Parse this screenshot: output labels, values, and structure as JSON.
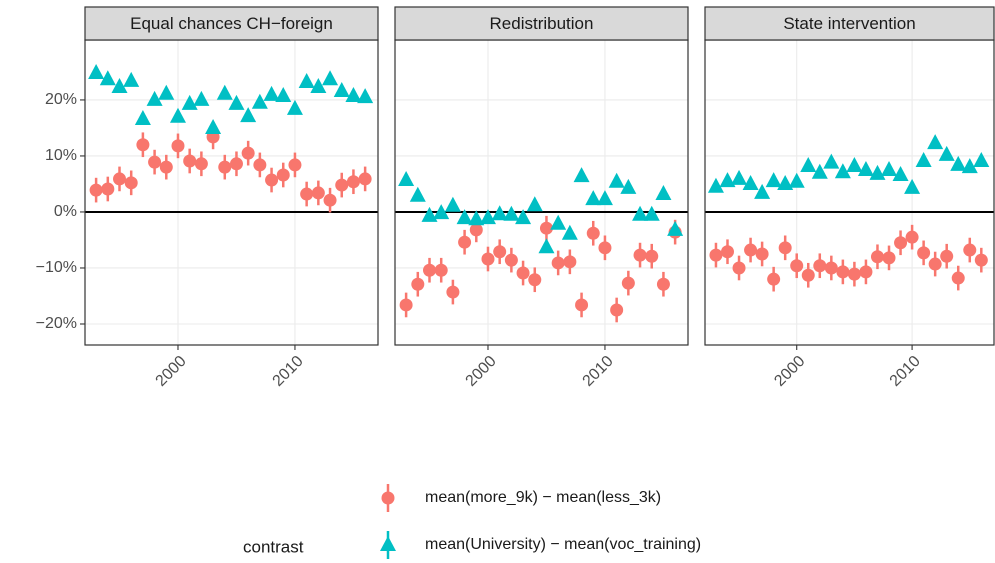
{
  "chart_data": {
    "type": "scatter",
    "facets": [
      "Equal chances CH−foreign",
      "Redistribution",
      "State intervention"
    ],
    "legend_title": "contrast",
    "x": [
      1993,
      1994,
      1995,
      1996,
      1997,
      1998,
      1999,
      2000,
      2001,
      2002,
      2003,
      2004,
      2005,
      2006,
      2007,
      2008,
      2009,
      2010,
      2011,
      2012,
      2013,
      2014,
      2015,
      2016
    ],
    "xlim": [
      1992.05,
      2017.1
    ],
    "xticks": [
      2000,
      2010
    ],
    "ylim": [
      -23.75,
      30.7
    ],
    "yticks": [
      {
        "value": -20,
        "label": "−20%"
      },
      {
        "value": -10,
        "label": "−10%"
      },
      {
        "value": 0,
        "label": "0%"
      },
      {
        "value": 10,
        "label": "10%"
      },
      {
        "value": 20,
        "label": "20%"
      }
    ],
    "hline": 0,
    "grid": true,
    "series": [
      {
        "name": "mean(more_9k) − mean(less_3k)",
        "color": "#f8766d",
        "marker": "circle",
        "values": [
          [
            3.9,
            4.1,
            5.9,
            5.2,
            12,
            8.9,
            8,
            11.8,
            9.1,
            8.6,
            13.4,
            8,
            8.6,
            10.5,
            8.4,
            5.7,
            6.6,
            8.4,
            3.2,
            3.4,
            2.1,
            4.8,
            5.4,
            5.9
          ],
          [
            -16.6,
            -12.9,
            -10.4,
            -10.4,
            -14.3,
            -5.4,
            -3.2,
            -8.4,
            -7.1,
            -8.6,
            -10.9,
            -12.1,
            -2.9,
            -9.1,
            -8.9,
            -16.6,
            -3.8,
            -6.4,
            -17.5,
            -12.7,
            -7.7,
            -7.9,
            -12.9,
            -3.6
          ],
          [
            -7.7,
            -7.1,
            -10,
            -6.8,
            -7.5,
            -12,
            -6.4,
            -9.6,
            -11.3,
            -9.6,
            -10,
            -10.7,
            -11.1,
            -10.7,
            -8,
            -8.2,
            -5.5,
            -4.5,
            -7.3,
            -9.3,
            -7.9,
            -11.8,
            -6.8,
            -8.6
          ]
        ],
        "errors": [
          [
            2.2,
            2.2,
            2.2,
            2.2,
            2.2,
            2.2,
            2.2,
            2.2,
            2.2,
            2.2,
            2.2,
            2.2,
            2.2,
            2.2,
            2.2,
            2.2,
            2.2,
            2.2,
            2.2,
            2.2,
            2.2,
            2.2,
            2.2,
            2.2
          ],
          [
            2.2,
            2.2,
            2.2,
            2.2,
            2.2,
            2.2,
            2.2,
            2.2,
            2.2,
            2.2,
            2.2,
            2.2,
            2.2,
            2.2,
            2.2,
            2.2,
            2.2,
            2.2,
            2.2,
            2.2,
            2.2,
            2.2,
            2.2,
            2.2
          ],
          [
            2.2,
            2.2,
            2.2,
            2.2,
            2.2,
            2.2,
            2.2,
            2.2,
            2.2,
            2.2,
            2.2,
            2.2,
            2.2,
            2.2,
            2.2,
            2.2,
            2.2,
            2.2,
            2.2,
            2.2,
            2.2,
            2.2,
            2.2,
            2.2
          ]
        ]
      },
      {
        "name": "mean(University) − mean(voc_training)",
        "color": "#00bfc4",
        "marker": "triangle",
        "values": [
          [
            24.8,
            23.7,
            22.3,
            23.4,
            16.6,
            20,
            21.1,
            17,
            19.3,
            20,
            15,
            21.1,
            19.3,
            17.1,
            19.5,
            20.9,
            20.7,
            18.4,
            23.2,
            22.3,
            23.7,
            21.6,
            20.7,
            20.5
          ],
          [
            5.7,
            2.9,
            -0.7,
            -0.2,
            1.1,
            -1.1,
            -1.3,
            -1.1,
            -0.4,
            -0.5,
            -1.1,
            1.2,
            -6.3,
            -2.1,
            -3.9,
            6.4,
            2.3,
            2.3,
            5.4,
            4.3,
            -0.5,
            -0.5,
            3.2,
            -3.2
          ],
          [
            4.5,
            5.5,
            5.9,
            5,
            3.4,
            5.5,
            5,
            5.4,
            8.2,
            7,
            8.8,
            7.1,
            8.2,
            7.5,
            6.8,
            7.5,
            6.6,
            4.3,
            9.1,
            12.3,
            10.2,
            8.4,
            8,
            9.1
          ]
        ],
        "errors": [
          [
            0.8,
            0.8,
            0.8,
            0.8,
            0.8,
            0.8,
            0.8,
            0.8,
            0.8,
            0.8,
            0.8,
            0.8,
            0.8,
            0.8,
            0.8,
            0.8,
            0.8,
            0.8,
            0.8,
            0.8,
            0.8,
            0.8,
            0.8,
            0.8
          ],
          [
            0.8,
            0.8,
            0.8,
            0.8,
            0.8,
            0.8,
            0.8,
            0.8,
            0.8,
            0.8,
            0.8,
            0.8,
            0.8,
            0.8,
            0.8,
            0.8,
            0.8,
            0.8,
            0.8,
            0.8,
            0.8,
            0.8,
            0.8,
            0.8
          ],
          [
            0.8,
            0.8,
            0.8,
            0.8,
            0.8,
            0.8,
            0.8,
            0.8,
            0.8,
            0.8,
            0.8,
            0.8,
            0.8,
            0.8,
            0.8,
            0.8,
            0.8,
            0.8,
            0.8,
            0.8,
            0.8,
            0.8,
            0.8,
            0.8
          ]
        ]
      }
    ]
  }
}
